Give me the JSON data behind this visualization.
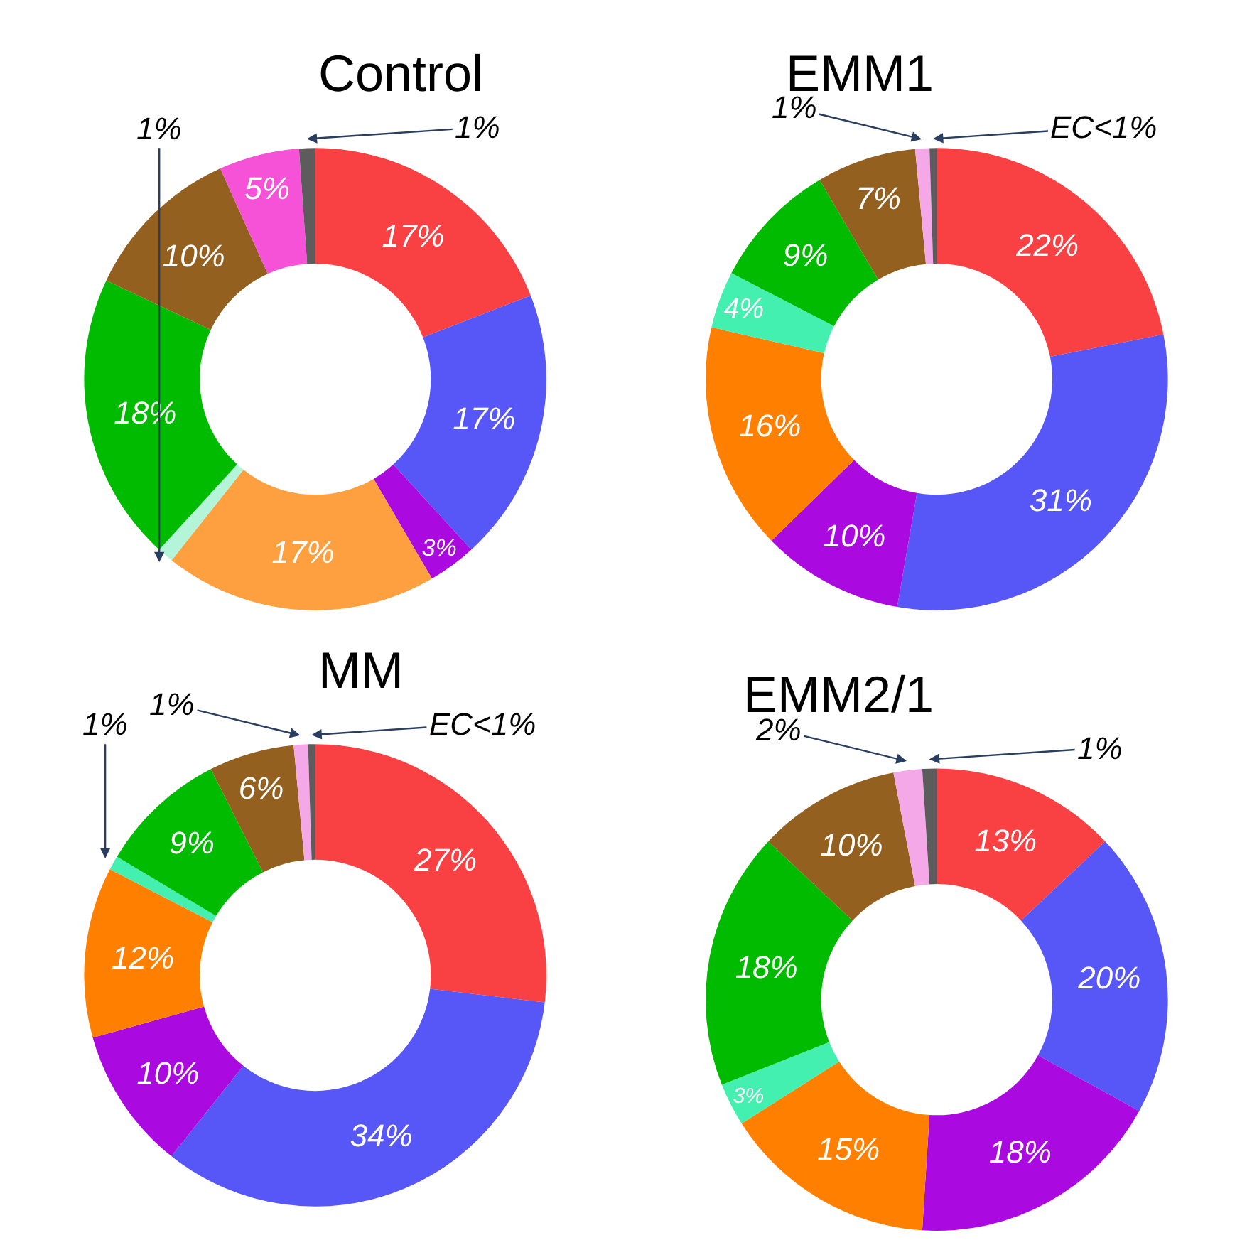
{
  "chart_data": [
    {
      "type": "donut",
      "title": "Control",
      "categories": [
        null,
        null,
        null,
        null,
        null,
        null,
        null,
        null,
        null
      ],
      "values": [
        17,
        17,
        3,
        17,
        1,
        18,
        10,
        5,
        1
      ],
      "colors": [
        "#f94144",
        "#5757f7",
        "#aa0adf",
        "#ffa040",
        "#b4f5da",
        "#00bb00",
        "#936020",
        "#f552d8",
        "#5c5c5c"
      ],
      "value_labels": [
        "17%",
        "17%",
        "3%",
        "17%",
        "1%",
        "18%",
        "10%",
        "5%",
        "1%"
      ]
    },
    {
      "type": "donut",
      "title": "EMM1",
      "categories": [
        null,
        null,
        null,
        null,
        null,
        null,
        null,
        null,
        null
      ],
      "values": [
        22,
        31,
        10,
        16,
        4,
        9,
        7,
        1,
        0.5
      ],
      "colors": [
        "#f94144",
        "#5757f7",
        "#aa0adf",
        "#ff8000",
        "#44f0b0",
        "#00bb00",
        "#936020",
        "#f4a8e8",
        "#5c5c5c"
      ],
      "value_labels": [
        "22%",
        "31%",
        "10%",
        "16%",
        "4%",
        "9%",
        "7%",
        "1%",
        "EC<1%"
      ]
    },
    {
      "type": "donut",
      "title": "MM",
      "categories": [
        null,
        null,
        null,
        null,
        null,
        null,
        null,
        null,
        null
      ],
      "values": [
        27,
        34,
        10,
        12,
        1,
        9,
        6,
        1,
        0.5
      ],
      "colors": [
        "#f94144",
        "#5757f7",
        "#aa0adf",
        "#ff8000",
        "#44f0b0",
        "#00bb00",
        "#936020",
        "#f4a8e8",
        "#5c5c5c"
      ],
      "value_labels": [
        "27%",
        "34%",
        "10%",
        "12%",
        "1%",
        "9%",
        "6%",
        "1%",
        "EC<1%"
      ]
    },
    {
      "type": "donut",
      "title": "EMM2/1",
      "categories": [
        null,
        null,
        null,
        null,
        null,
        null,
        null,
        null,
        null
      ],
      "values": [
        13,
        20,
        18,
        15,
        3,
        18,
        10,
        2,
        1
      ],
      "colors": [
        "#f94144",
        "#5757f7",
        "#aa0adf",
        "#ff8000",
        "#44f0b0",
        "#00bb00",
        "#936020",
        "#f4a8e8",
        "#5c5c5c"
      ],
      "value_labels": [
        "13%",
        "20%",
        "18%",
        "15%",
        "3%",
        "18%",
        "10%",
        "2%",
        "1%"
      ]
    }
  ]
}
